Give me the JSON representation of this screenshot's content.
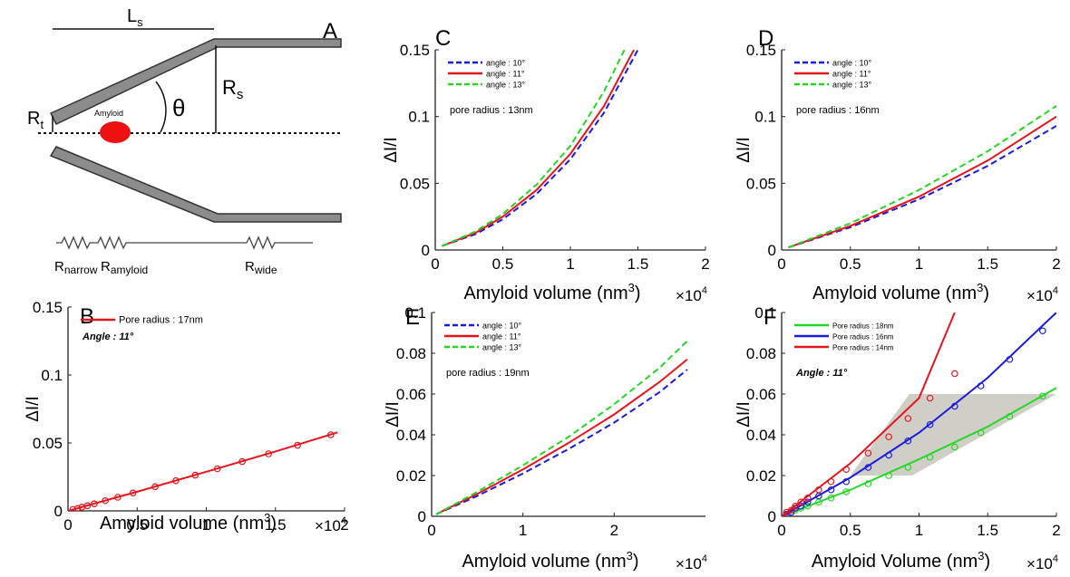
{
  "schematic": {
    "panel_label": "A",
    "length_label": "L",
    "length_sub": "s",
    "tip_radius_label": "R",
    "tip_radius_sub": "t",
    "base_radius_label": "R",
    "base_radius_sub": "s",
    "angle_label": "θ",
    "particle_label": "Amyloid",
    "resistor_narrow_label": "R",
    "resistor_narrow_sub": "narrow",
    "resistor_amyloid_label": "R",
    "resistor_amyloid_sub": "amyloid",
    "resistor_wide_label": "R",
    "resistor_wide_sub": "wide"
  },
  "colors": {
    "red": "#e8141c",
    "blue": "#1a1ae0",
    "green": "#22d822",
    "shade": "#cfcfc8"
  },
  "chart_data": [
    {
      "id": "B",
      "panel_label": "B",
      "type": "line",
      "ylabel": "ΔI/I",
      "xlabel": "Amyloid volume (nm",
      "xlabel_sup": "3",
      "xlabel_tail": ")",
      "x_multiplier": "×10",
      "x_multiplier_exp": "4",
      "xlim": [
        0,
        2
      ],
      "ylim": [
        0,
        0.15
      ],
      "xticks": [
        "0",
        "0.5",
        "1",
        "1.5",
        "2"
      ],
      "yticks": [
        "0",
        "0.05",
        "0.1",
        "0.15"
      ],
      "legend_position": "top-left",
      "annotations": [
        "Angle : 11°"
      ],
      "series": [
        {
          "name": "Pore radius : 17nm",
          "color": "#e8141c",
          "dash": false,
          "markers": true,
          "x": [
            0.035,
            0.07,
            0.1,
            0.14,
            0.19,
            0.27,
            0.36,
            0.47,
            0.63,
            0.78,
            0.92,
            1.08,
            1.26,
            1.45,
            1.66,
            1.9
          ],
          "y": [
            0.001,
            0.0018,
            0.0027,
            0.0038,
            0.0052,
            0.0075,
            0.01,
            0.0132,
            0.0178,
            0.0222,
            0.0263,
            0.031,
            0.0363,
            0.042,
            0.0483,
            0.056
          ],
          "curve_x": [
            0,
            0.5,
            1,
            1.5,
            1.95
          ],
          "curve_y": [
            0,
            0.0141,
            0.0288,
            0.0437,
            0.0578
          ]
        }
      ]
    },
    {
      "id": "C",
      "panel_label": "C",
      "type": "line",
      "ylabel": "ΔI/I",
      "xlabel": "Amyloid volume (nm",
      "xlabel_sup": "3",
      "xlabel_tail": ")",
      "x_multiplier": "×10",
      "x_multiplier_exp": "4",
      "xlim": [
        0,
        2
      ],
      "ylim": [
        0,
        0.15
      ],
      "xticks": [
        "0",
        "0.5",
        "1",
        "1.5",
        "2"
      ],
      "yticks": [
        "0",
        "0.05",
        "0.1",
        "0.15"
      ],
      "legend_position": "top-left",
      "annotations": [
        "pore radius : 13nm"
      ],
      "series": [
        {
          "name": "angle : 10°",
          "color": "#1a1ae0",
          "dash": true,
          "x": [
            0.05,
            0.3,
            0.5,
            0.75,
            1,
            1.25,
            1.5
          ],
          "y": [
            0.003,
            0.012,
            0.023,
            0.042,
            0.068,
            0.103,
            0.15
          ]
        },
        {
          "name": "angle : 11°",
          "color": "#e8141c",
          "dash": false,
          "x": [
            0.05,
            0.3,
            0.5,
            0.75,
            1,
            1.25,
            1.47
          ],
          "y": [
            0.003,
            0.013,
            0.025,
            0.045,
            0.072,
            0.108,
            0.15
          ]
        },
        {
          "name": "angle : 13°",
          "color": "#22d822",
          "dash": true,
          "x": [
            0.05,
            0.3,
            0.5,
            0.75,
            1,
            1.25,
            1.4
          ],
          "y": [
            0.003,
            0.014,
            0.027,
            0.049,
            0.078,
            0.119,
            0.15
          ]
        }
      ]
    },
    {
      "id": "D",
      "panel_label": "D",
      "type": "line",
      "ylabel": "ΔI/I",
      "xlabel": "Amyloid volume (nm",
      "xlabel_sup": "3",
      "xlabel_tail": ")",
      "x_multiplier": "×10",
      "x_multiplier_exp": "4",
      "xlim": [
        0,
        2
      ],
      "ylim": [
        0,
        0.15
      ],
      "xticks": [
        "0",
        "0.5",
        "1",
        "1.5",
        "2"
      ],
      "yticks": [
        "0",
        "0.05",
        "0.1",
        "0.15"
      ],
      "legend_position": "top-left",
      "annotations": [
        "pore radius : 16nm"
      ],
      "series": [
        {
          "name": "angle : 10°",
          "color": "#1a1ae0",
          "dash": true,
          "x": [
            0.05,
            0.5,
            1,
            1.5,
            2
          ],
          "y": [
            0.002,
            0.017,
            0.038,
            0.063,
            0.093
          ]
        },
        {
          "name": "angle : 11°",
          "color": "#e8141c",
          "dash": false,
          "x": [
            0.05,
            0.5,
            1,
            1.5,
            2
          ],
          "y": [
            0.002,
            0.018,
            0.04,
            0.067,
            0.1
          ]
        },
        {
          "name": "angle : 13°",
          "color": "#22d822",
          "dash": true,
          "x": [
            0.05,
            0.5,
            1,
            1.5,
            2
          ],
          "y": [
            0.002,
            0.02,
            0.045,
            0.074,
            0.108
          ]
        }
      ]
    },
    {
      "id": "E",
      "panel_label": "E",
      "type": "line",
      "ylabel": "ΔI/I",
      "xlabel": "Amyloid volume (nm",
      "xlabel_sup": "3",
      "xlabel_tail": ")",
      "x_multiplier": "×10",
      "x_multiplier_exp": "4",
      "xlim": [
        0,
        3
      ],
      "ylim": [
        0,
        0.1
      ],
      "xticks": [
        "0",
        "1",
        "2"
      ],
      "yticks": [
        "0",
        "0.02",
        "0.04",
        "0.06",
        "0.08",
        "0.1"
      ],
      "legend_position": "top-left",
      "annotations": [
        "pore radius : 19nm"
      ],
      "series": [
        {
          "name": "angle : 10°",
          "color": "#1a1ae0",
          "dash": true,
          "x": [
            0.05,
            0.5,
            1,
            1.5,
            2,
            2.5,
            2.8
          ],
          "y": [
            0.001,
            0.01,
            0.021,
            0.033,
            0.046,
            0.061,
            0.072
          ]
        },
        {
          "name": "angle : 11°",
          "color": "#e8141c",
          "dash": false,
          "x": [
            0.05,
            0.5,
            1,
            1.5,
            2,
            2.5,
            2.8
          ],
          "y": [
            0.001,
            0.011,
            0.023,
            0.036,
            0.05,
            0.066,
            0.077
          ]
        },
        {
          "name": "angle : 13°",
          "color": "#22d822",
          "dash": true,
          "x": [
            0.05,
            0.5,
            1,
            1.5,
            2,
            2.5,
            2.8
          ],
          "y": [
            0.001,
            0.012,
            0.025,
            0.039,
            0.055,
            0.073,
            0.086
          ]
        }
      ]
    },
    {
      "id": "F",
      "panel_label": "F",
      "type": "line",
      "ylabel": "ΔI/I",
      "xlabel": "Amyloid Volume (nm",
      "xlabel_sup": "3",
      "xlabel_tail": ")",
      "x_multiplier": "×10",
      "x_multiplier_exp": "4",
      "xlim": [
        0,
        2
      ],
      "ylim": [
        0,
        0.1
      ],
      "xticks": [
        "0",
        "0.5",
        "1",
        "1.5",
        "2"
      ],
      "yticks": [
        "0",
        "0.02",
        "0.04",
        "0.06",
        "0.08",
        "0.1"
      ],
      "legend_position": "top-left",
      "annotations": [
        "Angle : 11°"
      ],
      "shaded_region": {
        "y_range": [
          0.02,
          0.06
        ],
        "x_at_y_low": [
          0.5,
          0.95
        ],
        "x_at_y_high": [
          0.93,
          2
        ]
      },
      "series": [
        {
          "name": "Pore radius : 18nm",
          "color": "#22d822",
          "dash": false,
          "markers": true,
          "x": [
            0.035,
            0.07,
            0.1,
            0.14,
            0.19,
            0.27,
            0.36,
            0.47,
            0.63,
            0.78,
            0.92,
            1.08,
            1.26,
            1.45,
            1.66,
            1.9
          ],
          "y": [
            0.001,
            0.002,
            0.003,
            0.004,
            0.005,
            0.007,
            0.009,
            0.012,
            0.016,
            0.02,
            0.024,
            0.029,
            0.034,
            0.041,
            0.049,
            0.059
          ],
          "curve_x": [
            0,
            0.5,
            1,
            1.5,
            2
          ],
          "curve_y": [
            0,
            0.013,
            0.028,
            0.044,
            0.063
          ]
        },
        {
          "name": "Pore radius : 16nm",
          "color": "#1a1ae0",
          "dash": false,
          "markers": true,
          "x": [
            0.035,
            0.07,
            0.1,
            0.14,
            0.19,
            0.27,
            0.36,
            0.47,
            0.63,
            0.78,
            0.92,
            1.08,
            1.26,
            1.45,
            1.66,
            1.9
          ],
          "y": [
            0.001,
            0.002,
            0.004,
            0.005,
            0.007,
            0.01,
            0.013,
            0.017,
            0.024,
            0.03,
            0.037,
            0.045,
            0.054,
            0.064,
            0.077,
            0.091
          ],
          "curve_x": [
            0,
            0.5,
            1,
            1.5,
            2
          ],
          "curve_y": [
            0,
            0.019,
            0.041,
            0.068,
            0.1
          ]
        },
        {
          "name": "Pore radius : 14nm",
          "color": "#e8141c",
          "dash": false,
          "markers": true,
          "x": [
            0.035,
            0.07,
            0.1,
            0.14,
            0.19,
            0.27,
            0.36,
            0.47,
            0.63,
            0.78,
            0.92,
            1.08,
            1.26
          ],
          "y": [
            0.002,
            0.003,
            0.005,
            0.007,
            0.009,
            0.013,
            0.017,
            0.023,
            0.031,
            0.039,
            0.048,
            0.058,
            0.07
          ],
          "curve_x": [
            0,
            0.5,
            1,
            1.26
          ],
          "curve_y": [
            0,
            0.026,
            0.058,
            0.1
          ]
        }
      ]
    }
  ]
}
